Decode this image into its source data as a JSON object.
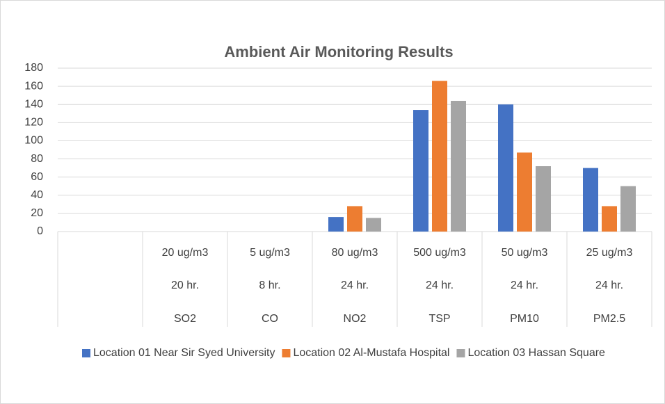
{
  "chart_data": {
    "type": "bar",
    "title": "Ambient Air Monitoring Results",
    "categories": [
      null,
      "SO2",
      "CO",
      "NO2",
      "TSP",
      "PM10",
      "PM2.5"
    ],
    "durations": [
      null,
      "20 hr.",
      "8 hr.",
      "24 hr.",
      "24 hr.",
      "24 hr.",
      "24 hr."
    ],
    "standards": [
      null,
      "20 ug/m3",
      "5 ug/m3",
      "80 ug/m3",
      "500 ug/m3",
      "50 ug/m3",
      "25 ug/m3"
    ],
    "series": [
      {
        "name": "Location 01 Near Sir Syed University",
        "color": "#4472c4",
        "values": [
          null,
          null,
          null,
          16,
          134,
          140,
          70
        ]
      },
      {
        "name": "Location 02 Al-Mustafa Hospital",
        "color": "#ed7d31",
        "values": [
          null,
          null,
          null,
          28,
          166,
          87,
          28
        ]
      },
      {
        "name": "Location 03 Hassan Square",
        "color": "#a5a5a5",
        "values": [
          null,
          null,
          null,
          15,
          144,
          72,
          50
        ]
      }
    ],
    "ylim": [
      0,
      180
    ],
    "yticks": [
      0,
      20,
      40,
      60,
      80,
      100,
      120,
      140,
      160,
      180
    ],
    "grid": true,
    "legend": "bottom"
  }
}
